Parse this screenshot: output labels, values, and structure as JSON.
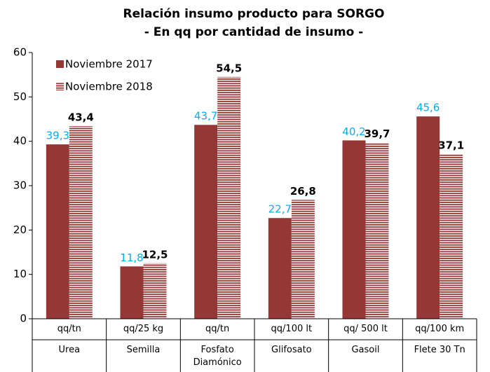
{
  "chart_data": {
    "type": "bar",
    "title": "Relación insumo producto para SORGO",
    "subtitle": "- En qq por cantidad de insumo -",
    "categories": [
      "Urea",
      "Semilla",
      "Fosfato Diamónico",
      "Glifosato",
      "Gasoil",
      "Flete 30 Tn"
    ],
    "units": [
      "qq/tn",
      "qq/25 kg",
      "qq/tn",
      "qq/100 lt",
      "qq/ 500 lt",
      "qq/100 km"
    ],
    "series": [
      {
        "name": "Noviembre 2017",
        "color": "#953735",
        "pattern": "solid",
        "label_color": "#00b0f0",
        "label_bold": false,
        "values": [
          39.3,
          11.8,
          43.7,
          22.7,
          40.2,
          45.6
        ],
        "value_labels": [
          "39,3",
          "11,8",
          "43,7",
          "22,7",
          "40,2",
          "45,6"
        ]
      },
      {
        "name": "Noviembre 2018",
        "color": "#953735",
        "pattern": "horizontal-stripes",
        "label_color": "#000000",
        "label_bold": true,
        "values": [
          43.4,
          12.5,
          54.5,
          26.8,
          39.7,
          37.1
        ],
        "value_labels": [
          "43,4",
          "12,5",
          "54,5",
          "26,8",
          "39,7",
          "37,1"
        ]
      }
    ],
    "ylim": [
      0,
      60
    ],
    "yticks": [
      0,
      10,
      20,
      30,
      40,
      50,
      60
    ],
    "grid": false,
    "legend": "top-left"
  }
}
